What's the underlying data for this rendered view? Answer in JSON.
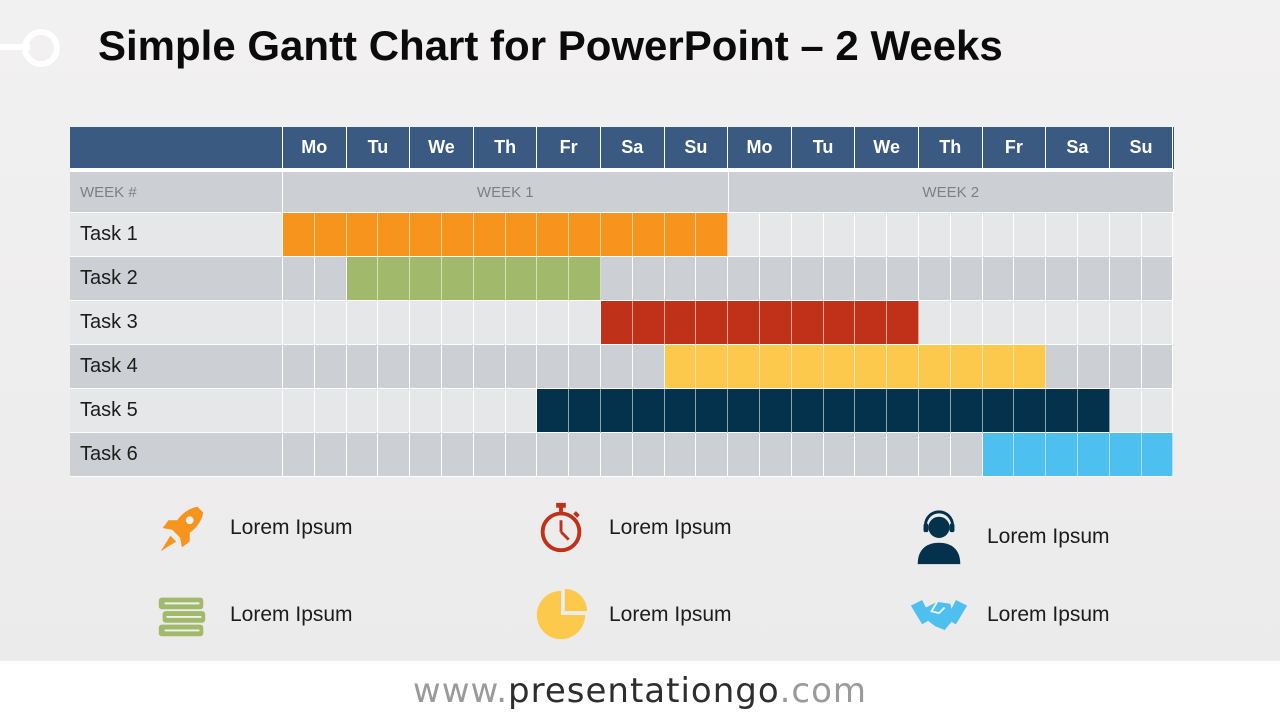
{
  "title": "Simple Gantt Chart for PowerPoint – 2 Weeks",
  "days": [
    "Mo",
    "Tu",
    "We",
    "Th",
    "Fr",
    "Sa",
    "Su",
    "Mo",
    "Tu",
    "We",
    "Th",
    "Fr",
    "Sa",
    "Su"
  ],
  "week_label": "WEEK #",
  "weeks": [
    "WEEK 1",
    "WEEK 2"
  ],
  "tasks": [
    {
      "label": "Task 1",
      "start": 0,
      "span": 14,
      "color": "#f7941d"
    },
    {
      "label": "Task 2",
      "start": 2,
      "span": 8,
      "color": "#a1b96b"
    },
    {
      "label": "Task 3",
      "start": 10,
      "span": 10,
      "color": "#c0311a"
    },
    {
      "label": "Task 4",
      "start": 12,
      "span": 12,
      "color": "#fdc94c"
    },
    {
      "label": "Task 5",
      "start": 8,
      "span": 18,
      "color": "#04324d"
    },
    {
      "label": "Task 6",
      "start": 22,
      "span": 6,
      "color": "#4dc0f0"
    }
  ],
  "legend": [
    {
      "text": "Lorem Ipsum",
      "icon": "rocket-icon",
      "color": "#f7941d"
    },
    {
      "text": "Lorem Ipsum",
      "icon": "stopwatch-icon",
      "color": "#c0311a"
    },
    {
      "text": "Lorem Ipsum",
      "icon": "support-agent-icon",
      "color": "#04324d"
    },
    {
      "text": "Lorem Ipsum",
      "icon": "books-icon",
      "color": "#a1b96b"
    },
    {
      "text": "Lorem Ipsum",
      "icon": "pie-chart-icon",
      "color": "#fdc94c"
    },
    {
      "text": "Lorem Ipsum",
      "icon": "handshake-icon",
      "color": "#4dc0f0"
    }
  ],
  "footer": {
    "prefix": "www.",
    "brand": "presentationgo",
    "suffix": ".com"
  }
}
